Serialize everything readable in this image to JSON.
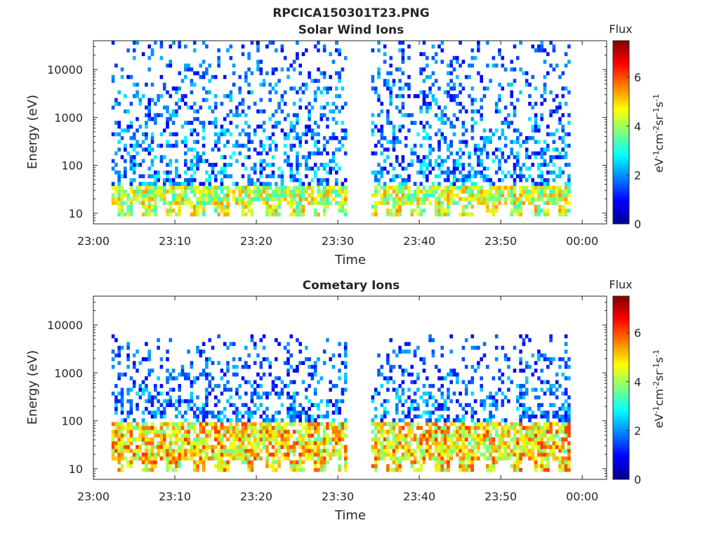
{
  "figure_title": "RPCICA150301T23.PNG",
  "chart_data": [
    {
      "type": "heatmap",
      "title": "Solar Wind Ions",
      "xlabel": "Time",
      "ylabel": "Energy (eV)",
      "x_ticks": [
        "23:00",
        "23:10",
        "23:20",
        "23:30",
        "23:40",
        "23:50",
        "00:00"
      ],
      "x_range": [
        "23:00",
        "00:03"
      ],
      "y_scale": "log",
      "y_ticks": [
        "10",
        "100",
        "1000",
        "10000"
      ],
      "ylim": [
        6,
        40000
      ],
      "colorbar": {
        "title": "Flux",
        "label": "eV-1cm-2sr-1s-1",
        "ticks": [
          "0",
          "2",
          "4",
          "6"
        ],
        "range": [
          0,
          7.5
        ],
        "colormap": "jet"
      },
      "data_gap": [
        "23:31",
        "23:34"
      ],
      "low_energy_band_eV": [
        8,
        40
      ],
      "low_energy_flux_range": [
        3,
        5.5
      ],
      "high_energy_band_eV": [
        40,
        40000
      ],
      "high_energy_flux_range": [
        0.8,
        3.2
      ]
    },
    {
      "type": "heatmap",
      "title": "Cometary Ions",
      "xlabel": "Time",
      "ylabel": "Energy (eV)",
      "x_ticks": [
        "23:00",
        "23:10",
        "23:20",
        "23:30",
        "23:40",
        "23:50",
        "00:00"
      ],
      "x_range": [
        "23:00",
        "00:03"
      ],
      "y_scale": "log",
      "y_ticks": [
        "10",
        "100",
        "1000",
        "10000"
      ],
      "ylim": [
        6,
        40000
      ],
      "colorbar": {
        "title": "Flux",
        "label": "eV-1cm-2sr-1s-1",
        "ticks": [
          "0",
          "2",
          "4",
          "6"
        ],
        "range": [
          0,
          7.5
        ],
        "colormap": "jet"
      },
      "data_gap": [
        "23:31",
        "23:34"
      ],
      "low_energy_band_eV": [
        8,
        90
      ],
      "low_energy_flux_range": [
        3.5,
        6.2
      ],
      "high_energy_band_eV": [
        90,
        6000
      ],
      "high_energy_flux_range": [
        0.8,
        3.0
      ]
    }
  ]
}
